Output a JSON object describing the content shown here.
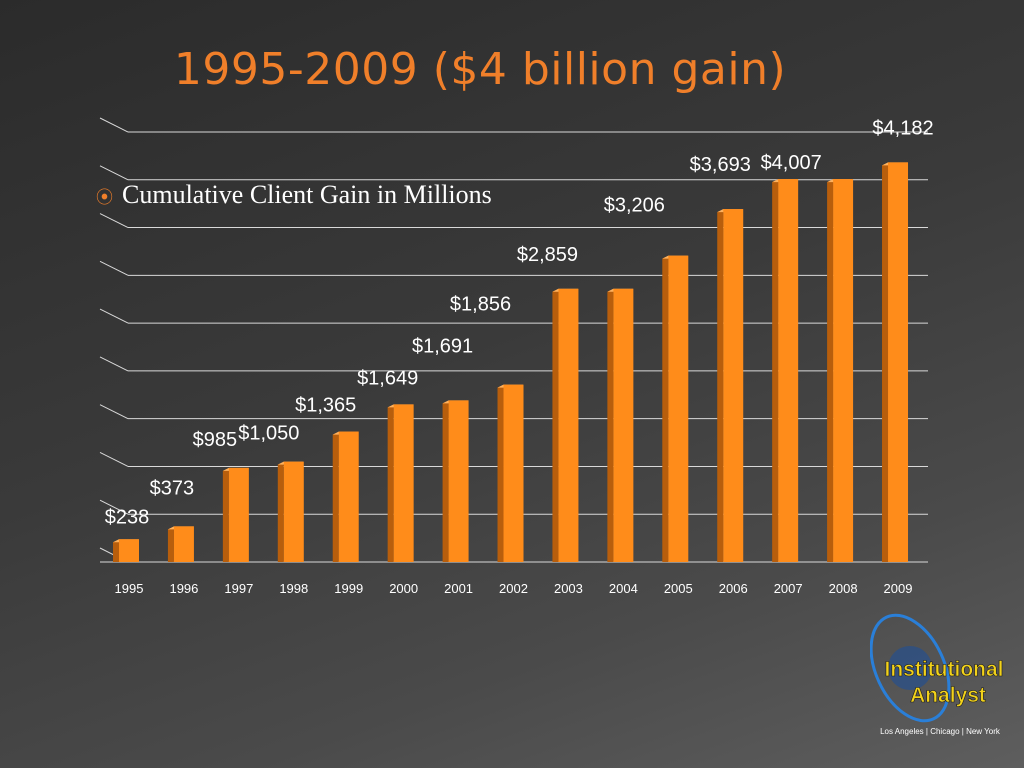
{
  "slide": {
    "title": "1995-2009 ($4 billion gain)",
    "bullet_icon": "radio-bullet-icon",
    "bullet_text": "Cumulative Client Gain in Millions"
  },
  "logo": {
    "line1": "Institutional",
    "line2": "Analyst",
    "tagline": "Los Angeles | Chicago | New York",
    "icon": "globe-orbit-logo"
  },
  "colors": {
    "accent": "#f07f2a",
    "bar_face": "#ff8c1a",
    "bar_side": "#b85e0c",
    "bar_top": "#ffb15c",
    "gridline": "#d9d9d9",
    "logo_text": "#f2d21b"
  },
  "chart_data": {
    "type": "bar",
    "title": "",
    "xlabel": "",
    "ylabel": "",
    "categories": [
      "1995",
      "1996",
      "1997",
      "1998",
      "1999",
      "2000",
      "2001",
      "2002",
      "2003",
      "2004",
      "2005",
      "2006",
      "2007",
      "2008",
      "2009"
    ],
    "values": [
      238,
      373,
      985,
      1050,
      1365,
      1649,
      1691,
      1856,
      2859,
      2859,
      3206,
      3693,
      4007,
      4007,
      4182
    ],
    "data_labels": [
      {
        "category": "1995",
        "text": "$238"
      },
      {
        "category": "1996",
        "text": "$373"
      },
      {
        "category": "1997",
        "text": "$985"
      },
      {
        "category": "1998",
        "text": "$1,050"
      },
      {
        "category": "1999",
        "text": "$1,365"
      },
      {
        "category": "2000",
        "text": "$1,649"
      },
      {
        "category": "2001",
        "text": "$1,691"
      },
      {
        "category": "2002",
        "text": "$1,856"
      },
      {
        "category": "2003",
        "text": "$2,859"
      },
      {
        "category": "2005",
        "text": "$3,206"
      },
      {
        "category": "2006",
        "text": "$3,693"
      },
      {
        "category": "2007",
        "text": "$4,007"
      },
      {
        "category": "2009",
        "text": "$4,182"
      }
    ],
    "ylim": [
      0,
      4500
    ],
    "grid": true,
    "legend": "none"
  }
}
